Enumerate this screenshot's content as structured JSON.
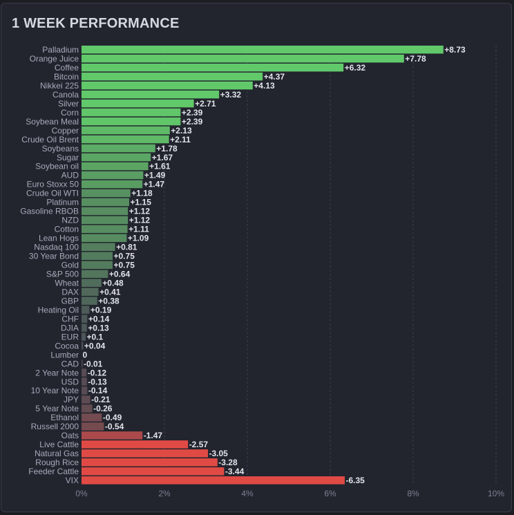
{
  "chart_data": {
    "type": "bar",
    "orientation": "horizontal",
    "title": "1 WEEK PERFORMANCE",
    "xlabel": "",
    "ylabel": "",
    "xlim": [
      0,
      10
    ],
    "x_ticks": [
      "0%",
      "2%",
      "4%",
      "6%",
      "8%",
      "10%"
    ],
    "grid": "vertical dashed",
    "bar_length": "absolute value",
    "colors": {
      "positive": "#62c96b",
      "negative": "#e04a45",
      "neutral": "#4a4b55"
    },
    "categories": [
      "Palladium",
      "Orange Juice",
      "Coffee",
      "Bitcoin",
      "Nikkei 225",
      "Canola",
      "Silver",
      "Corn",
      "Soybean Meal",
      "Copper",
      "Crude Oil Brent",
      "Soybeans",
      "Sugar",
      "Soybean oil",
      "AUD",
      "Euro Stoxx 50",
      "Crude Oil WTI",
      "Platinum",
      "Gasoline RBOB",
      "NZD",
      "Cotton",
      "Lean Hogs",
      "Nasdaq 100",
      "30 Year Bond",
      "Gold",
      "S&P 500",
      "Wheat",
      "DAX",
      "GBP",
      "Heating Oil",
      "CHF",
      "DJIA",
      "EUR",
      "Cocoa",
      "Lumber",
      "CAD",
      "2 Year Note",
      "USD",
      "10 Year Note",
      "JPY",
      "5 Year Note",
      "Ethanol",
      "Russell 2000",
      "Oats",
      "Live Cattle",
      "Natural Gas",
      "Rough Rice",
      "Feeder Cattle",
      "VIX"
    ],
    "values": [
      8.73,
      7.78,
      6.32,
      4.37,
      4.13,
      3.32,
      2.71,
      2.39,
      2.39,
      2.13,
      2.11,
      1.78,
      1.67,
      1.61,
      1.49,
      1.47,
      1.18,
      1.15,
      1.12,
      1.12,
      1.11,
      1.09,
      0.81,
      0.75,
      0.75,
      0.64,
      0.48,
      0.41,
      0.38,
      0.19,
      0.14,
      0.13,
      0.1,
      0.04,
      0,
      -0.01,
      -0.12,
      -0.13,
      -0.14,
      -0.21,
      -0.26,
      -0.49,
      -0.54,
      -1.47,
      -2.57,
      -3.05,
      -3.28,
      -3.44,
      -6.35
    ],
    "value_labels": [
      "+8.73",
      "+7.78",
      "+6.32",
      "+4.37",
      "+4.13",
      "+3.32",
      "+2.71",
      "+2.39",
      "+2.39",
      "+2.13",
      "+2.11",
      "+1.78",
      "+1.67",
      "+1.61",
      "+1.49",
      "+1.47",
      "+1.18",
      "+1.15",
      "+1.12",
      "+1.12",
      "+1.11",
      "+1.09",
      "+0.81",
      "+0.75",
      "+0.75",
      "+0.64",
      "+0.48",
      "+0.41",
      "+0.38",
      "+0.19",
      "+0.14",
      "+0.13",
      "+0.1",
      "+0.04",
      "0",
      "-0.01",
      "-0.12",
      "-0.13",
      "-0.14",
      "-0.21",
      "-0.26",
      "-0.49",
      "-0.54",
      "-1.47",
      "-2.57",
      "-3.05",
      "-3.28",
      "-3.44",
      "-6.35"
    ]
  }
}
